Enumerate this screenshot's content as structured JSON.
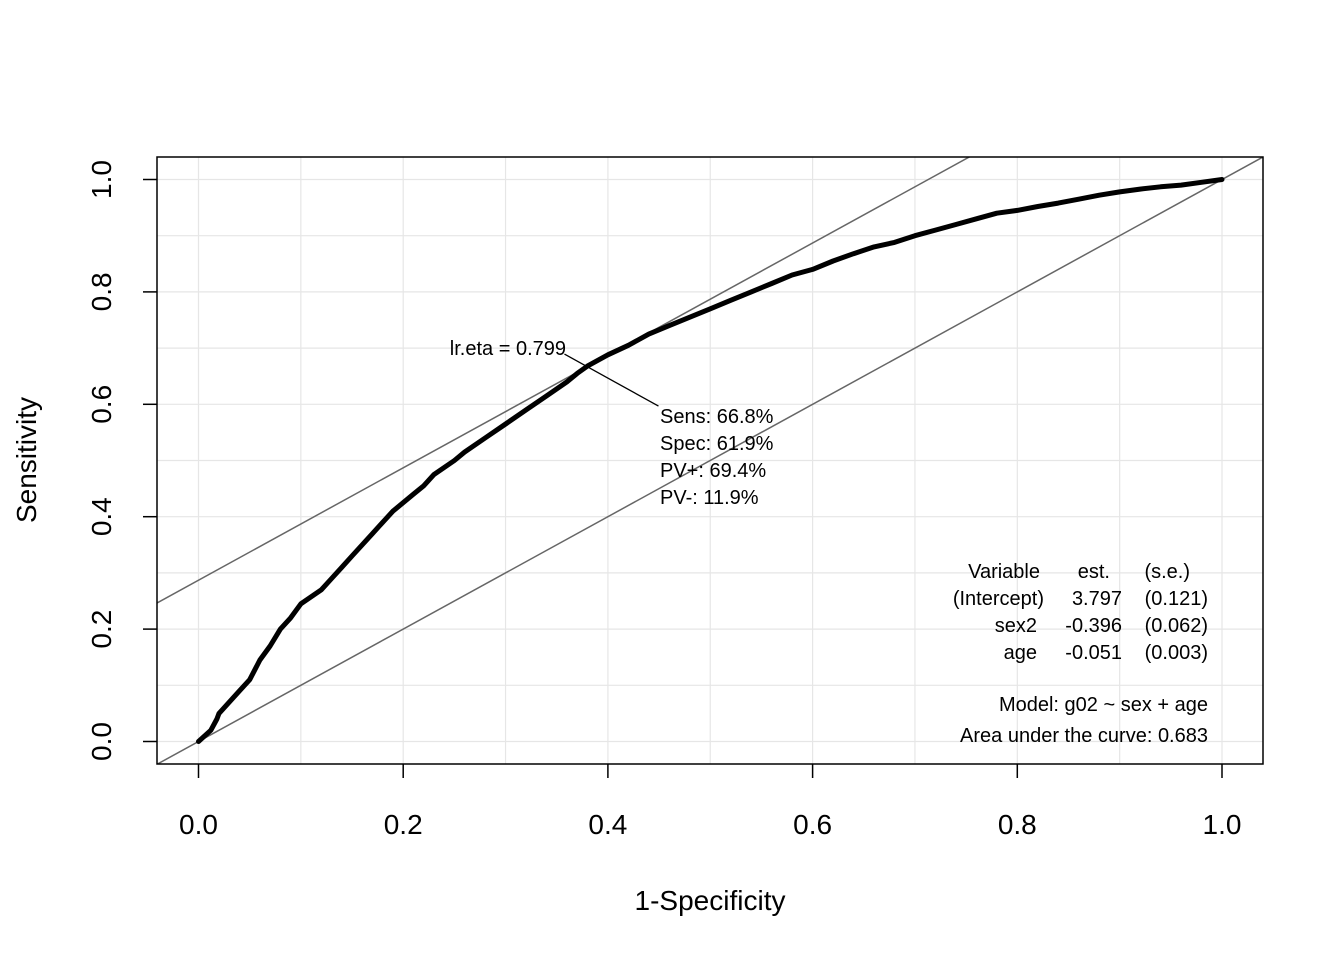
{
  "chart_data": {
    "type": "line",
    "title": "",
    "xlabel": "1-Specificity",
    "ylabel": "Sensitivity",
    "xlim": [
      -0.04,
      1.04
    ],
    "ylim": [
      -0.04,
      1.04
    ],
    "grid": true,
    "x_ticks": [
      0.0,
      0.2,
      0.4,
      0.6,
      0.8,
      1.0
    ],
    "x_tick_labels": [
      "0.0",
      "0.2",
      "0.4",
      "0.6",
      "0.8",
      "1.0"
    ],
    "y_ticks": [
      0.0,
      0.2,
      0.4,
      0.6,
      0.8,
      1.0
    ],
    "y_tick_labels": [
      "0.0",
      "0.2",
      "0.4",
      "0.6",
      "0.8",
      "1.0"
    ],
    "series": [
      {
        "name": "ROC curve",
        "x": [
          0.0,
          0.012,
          0.018,
          0.02,
          0.03,
          0.04,
          0.05,
          0.06,
          0.07,
          0.08,
          0.09,
          0.1,
          0.12,
          0.13,
          0.14,
          0.15,
          0.17,
          0.18,
          0.19,
          0.21,
          0.22,
          0.23,
          0.25,
          0.26,
          0.28,
          0.3,
          0.32,
          0.34,
          0.36,
          0.37,
          0.38,
          0.4,
          0.42,
          0.44,
          0.46,
          0.48,
          0.5,
          0.52,
          0.54,
          0.56,
          0.58,
          0.6,
          0.62,
          0.64,
          0.66,
          0.68,
          0.7,
          0.72,
          0.74,
          0.76,
          0.78,
          0.8,
          0.82,
          0.84,
          0.86,
          0.88,
          0.9,
          0.92,
          0.94,
          0.96,
          0.98,
          1.0
        ],
        "y": [
          0.0,
          0.02,
          0.04,
          0.05,
          0.07,
          0.09,
          0.11,
          0.145,
          0.17,
          0.2,
          0.22,
          0.245,
          0.27,
          0.29,
          0.31,
          0.33,
          0.37,
          0.39,
          0.41,
          0.44,
          0.455,
          0.475,
          0.5,
          0.515,
          0.54,
          0.565,
          0.59,
          0.615,
          0.64,
          0.655,
          0.668,
          0.688,
          0.705,
          0.725,
          0.74,
          0.755,
          0.77,
          0.785,
          0.8,
          0.815,
          0.83,
          0.84,
          0.855,
          0.868,
          0.88,
          0.888,
          0.9,
          0.91,
          0.92,
          0.93,
          0.94,
          0.945,
          0.952,
          0.958,
          0.965,
          0.972,
          0.978,
          0.983,
          0.987,
          0.99,
          0.995,
          1.0
        ]
      }
    ],
    "reference_lines": [
      {
        "name": "diagonal",
        "intercept": 0.0,
        "slope": 1.0
      },
      {
        "name": "tangent",
        "intercept": 0.287,
        "slope": 1.0
      }
    ],
    "optimal_point": {
      "x": 0.381,
      "y": 0.668
    },
    "annotations": {
      "cutoff_label": "lr.eta = 0.799",
      "sens": "Sens: 66.8%",
      "spec": "Spec: 61.9%",
      "pv_pos": "PV+: 69.4%",
      "pv_neg": "PV-: 11.9%"
    },
    "coef_table": {
      "headers": [
        "Variable",
        "est.",
        "(s.e.)"
      ],
      "rows": [
        [
          "(Intercept)",
          "3.797",
          "(0.121)"
        ],
        [
          "sex2",
          "-0.396",
          "(0.062)"
        ],
        [
          "age",
          "-0.051",
          "(0.003)"
        ]
      ]
    },
    "model_text": "Model:  g02 ~ sex + age",
    "auc_text": "Area under the curve: 0.683",
    "colors": {
      "curve": "#000000",
      "reference": "#666666",
      "grid": "#e6e6e6",
      "box": "#000000"
    }
  }
}
